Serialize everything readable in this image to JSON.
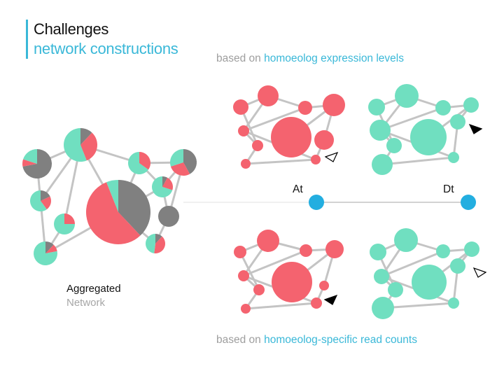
{
  "header": {
    "title": "Challenges",
    "subtitle": "network constructions"
  },
  "captions": {
    "top_prefix": "based on",
    "top_highlight": "homoeolog expression levels",
    "bottom_prefix": "based on",
    "bottom_highlight": "homoeolog-specific read counts"
  },
  "aggregated": {
    "line1": "Aggregated",
    "line2": "Network"
  },
  "axis": {
    "left_label": "At",
    "right_label": "Dt"
  },
  "colors": {
    "accent": "#3ab8d8",
    "at_red": "#f4636f",
    "dt_green": "#70dfc0",
    "gray": "#808080",
    "edge": "#c4c4c4",
    "axis_dot": "#23aee0"
  }
}
